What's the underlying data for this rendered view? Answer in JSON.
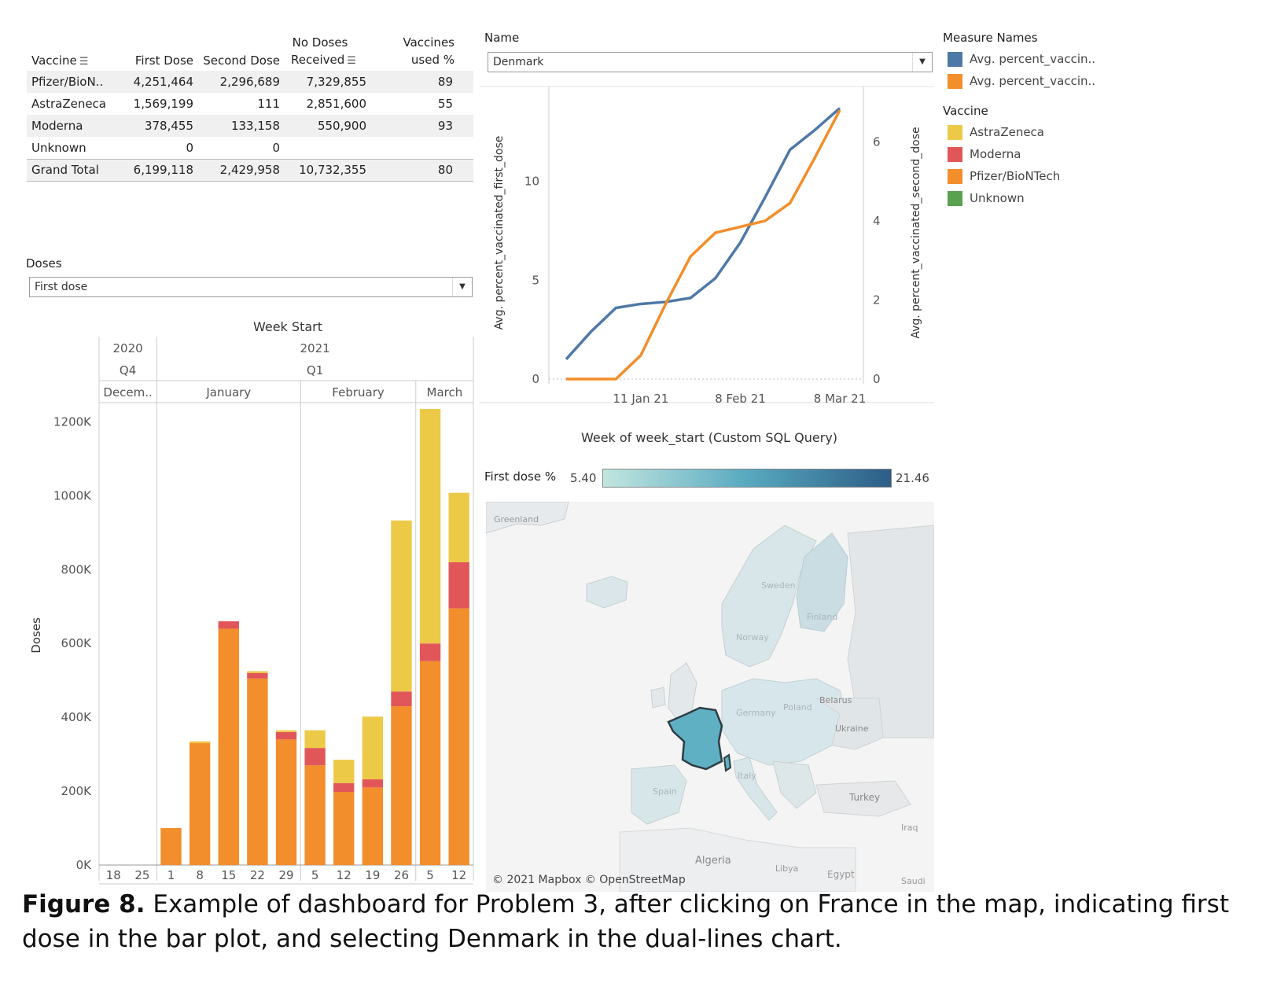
{
  "table": {
    "headers": {
      "vaccine": "Vaccine",
      "first_dose": "First Dose",
      "second_dose": "Second Dose",
      "no_doses_line1": "No Doses",
      "no_doses_line2": "Received",
      "vaccines_used_line1": "Vaccines",
      "vaccines_used_line2": "used %"
    },
    "rows": [
      {
        "vaccine": "Pfizer/BioN..",
        "first": "4,251,464",
        "second": "2,296,689",
        "received": "7,329,855",
        "used": "89"
      },
      {
        "vaccine": "AstraZeneca",
        "first": "1,569,199",
        "second": "111",
        "received": "2,851,600",
        "used": "55"
      },
      {
        "vaccine": "Moderna",
        "first": "378,455",
        "second": "133,158",
        "received": "550,900",
        "used": "93"
      },
      {
        "vaccine": "Unknown",
        "first": "0",
        "second": "0",
        "received": "",
        "used": ""
      },
      {
        "vaccine": "Grand Total",
        "first": "6,199,118",
        "second": "2,429,958",
        "received": "10,732,355",
        "used": "80"
      }
    ]
  },
  "doses_filter": {
    "label": "Doses",
    "value": "First dose"
  },
  "name_filter": {
    "label": "Name",
    "value": "Denmark"
  },
  "legend": {
    "measure_title": "Measure Names",
    "measures": [
      {
        "label": "Avg. percent_vaccin..",
        "color": "#4e79a7"
      },
      {
        "label": "Avg. percent_vaccin..",
        "color": "#f28e2b"
      }
    ],
    "vaccine_title": "Vaccine",
    "vaccines": [
      {
        "label": "AstraZeneca",
        "color": "#edc948"
      },
      {
        "label": "Moderna",
        "color": "#e15759"
      },
      {
        "label": "Pfizer/BioNTech",
        "color": "#f28e2b"
      },
      {
        "label": "Unknown",
        "color": "#59a14f"
      }
    ]
  },
  "chart_data": [
    {
      "type": "bar",
      "stacked": true,
      "title": "Week Start",
      "ylabel": "Doses",
      "ylim": [
        0,
        1250000
      ],
      "yticks": [
        "0K",
        "200K",
        "400K",
        "600K",
        "800K",
        "1000K",
        "1200K"
      ],
      "header_rows": {
        "years": [
          {
            "label": "2020",
            "span": [
              0,
              2
            ]
          },
          {
            "label": "2021",
            "span": [
              2,
              13
            ]
          }
        ],
        "quarters": [
          {
            "label": "Q4",
            "span": [
              0,
              2
            ]
          },
          {
            "label": "Q1",
            "span": [
              2,
              13
            ]
          }
        ],
        "months": [
          {
            "label": "Decem..",
            "span": [
              0,
              2
            ]
          },
          {
            "label": "January",
            "span": [
              2,
              7
            ]
          },
          {
            "label": "February",
            "span": [
              7,
              11
            ]
          },
          {
            "label": "March",
            "span": [
              11,
              13
            ]
          }
        ]
      },
      "categories": [
        "18",
        "25",
        "1",
        "8",
        "15",
        "22",
        "29",
        "5",
        "12",
        "19",
        "26",
        "5",
        "12"
      ],
      "series": [
        {
          "name": "Pfizer/BioNTech",
          "color": "#f28e2b",
          "values": [
            0,
            0,
            100000,
            330000,
            640000,
            505000,
            340000,
            270000,
            198000,
            210000,
            430000,
            552000,
            695000
          ]
        },
        {
          "name": "Moderna",
          "color": "#e15759",
          "values": [
            0,
            0,
            0,
            0,
            20000,
            15000,
            20000,
            47000,
            24000,
            22000,
            40000,
            48000,
            125000
          ]
        },
        {
          "name": "AstraZeneca",
          "color": "#edc948",
          "values": [
            0,
            0,
            0,
            5000,
            0,
            5000,
            5000,
            48000,
            63000,
            170000,
            463000,
            635000,
            188000
          ]
        }
      ]
    },
    {
      "type": "line",
      "xlabel": "Week of week_start (Custom SQL Query)",
      "ylabel_left": "Avg. percent_vaccinated_first_dose",
      "ylabel_right": "Avg. percent_vaccinated_second_dose",
      "x": [
        "2020-12-21",
        "2020-12-28",
        "2021-01-04",
        "2021-01-11",
        "2021-01-18",
        "2021-01-25",
        "2021-02-01",
        "2021-02-08",
        "2021-02-15",
        "2021-02-22",
        "2021-03-01",
        "2021-03-08",
        "2021-03-15"
      ],
      "xticks": [
        "11 Jan 21",
        "8 Feb 21",
        "8 Mar 21"
      ],
      "ylim_left": [
        0,
        14
      ],
      "yticks_left": [
        "0",
        "5",
        "10"
      ],
      "ylim_right": [
        0,
        7
      ],
      "yticks_right": [
        "0",
        "2",
        "4",
        "6"
      ],
      "series": [
        {
          "axis": "left",
          "color": "#4e79a7",
          "values": [
            1.0,
            2.4,
            3.6,
            3.8,
            3.9,
            4.1,
            5.1,
            6.9,
            9.2,
            11.6,
            12.6,
            13.7,
            null
          ]
        },
        {
          "axis": "right",
          "color": "#f28e2b",
          "values": [
            0.0,
            0.0,
            0.0,
            0.6,
            1.9,
            3.1,
            3.7,
            3.85,
            4.0,
            4.45,
            5.6,
            6.8,
            null
          ]
        }
      ]
    }
  ],
  "map": {
    "colorbar_label": "First dose %",
    "min": "5.40",
    "max": "21.46",
    "attribution": "© 2021 Mapbox © OpenStreetMap",
    "place_labels": [
      "Greenland",
      "Sweden",
      "Finland",
      "Norway",
      "Belarus",
      "Poland",
      "Germany",
      "Ukraine",
      "Spain",
      "Italy",
      "Turkey",
      "Iraq",
      "Algeria",
      "Libya",
      "Egypt",
      "Saudi"
    ]
  },
  "caption": {
    "label": "Figure 8.",
    "text": " Example of dashboard for Problem 3, after clicking on France in the map, indicating first dose in the bar plot, and selecting Denmark in the dual-lines chart."
  }
}
